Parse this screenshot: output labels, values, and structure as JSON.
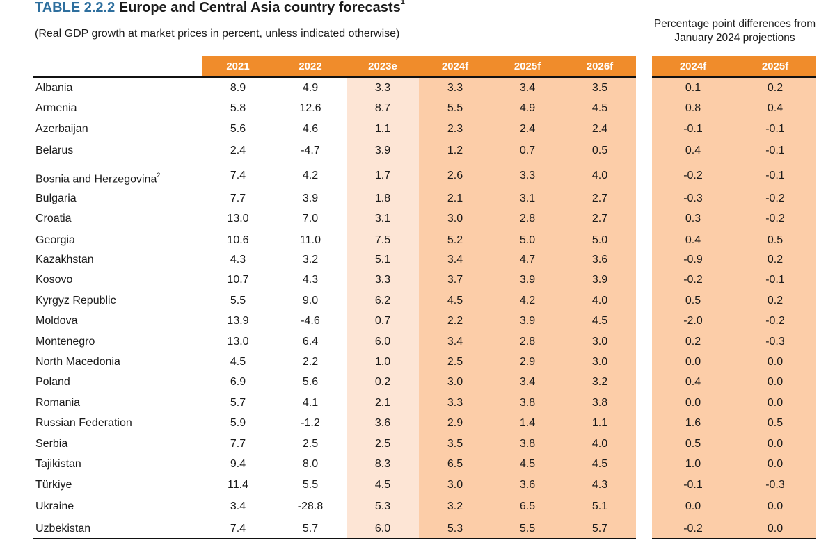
{
  "title": {
    "number": "TABLE 2.2.2",
    "text": "Europe and Central Asia country forecasts",
    "footnote": "1"
  },
  "subtitle": "(Real GDP growth at market prices in percent, unless indicated otherwise)",
  "pp_note": "Percentage point differences from January 2024 projections",
  "colors": {
    "header": "#f08c2b",
    "forecast_fill": "#fccda8",
    "estimate_fill": "#fde5d5",
    "title_accent": "#2e6f9e"
  },
  "columns": [
    "2021",
    "2022",
    "2023e",
    "2024f",
    "2025f",
    "2026f"
  ],
  "pp_columns": [
    "2024f",
    "2025f"
  ],
  "rows": [
    {
      "country": "Albania",
      "note": "",
      "values": [
        "8.9",
        "4.9",
        "3.3",
        "3.3",
        "3.4",
        "3.5"
      ],
      "pp": [
        "0.1",
        "0.2"
      ]
    },
    {
      "country": "Armenia",
      "note": "",
      "values": [
        "5.8",
        "12.6",
        "8.7",
        "5.5",
        "4.9",
        "4.5"
      ],
      "pp": [
        "0.8",
        "0.4"
      ]
    },
    {
      "country": "Azerbaijan",
      "note": "",
      "values": [
        "5.6",
        "4.6",
        "1.1",
        "2.3",
        "2.4",
        "2.4"
      ],
      "pp": [
        "-0.1",
        "-0.1"
      ]
    },
    {
      "country": "Belarus",
      "note": "",
      "values": [
        "2.4",
        "-4.7",
        "3.9",
        "1.2",
        "0.7",
        "0.5"
      ],
      "pp": [
        "0.4",
        "-0.1"
      ]
    },
    {
      "country": "Bosnia and Herzegovina",
      "note": "2",
      "values": [
        "7.4",
        "4.2",
        "1.7",
        "2.6",
        "3.3",
        "4.0"
      ],
      "pp": [
        "-0.2",
        "-0.1"
      ]
    },
    {
      "country": "Bulgaria",
      "note": "",
      "values": [
        "7.7",
        "3.9",
        "1.8",
        "2.1",
        "3.1",
        "2.7"
      ],
      "pp": [
        "-0.3",
        "-0.2"
      ]
    },
    {
      "country": "Croatia",
      "note": "",
      "values": [
        "13.0",
        "7.0",
        "3.1",
        "3.0",
        "2.8",
        "2.7"
      ],
      "pp": [
        "0.3",
        "-0.2"
      ]
    },
    {
      "country": "Georgia",
      "note": "",
      "values": [
        "10.6",
        "11.0",
        "7.5",
        "5.2",
        "5.0",
        "5.0"
      ],
      "pp": [
        "0.4",
        "0.5"
      ]
    },
    {
      "country": "Kazakhstan",
      "note": "",
      "values": [
        "4.3",
        "3.2",
        "5.1",
        "3.4",
        "4.7",
        "3.6"
      ],
      "pp": [
        "-0.9",
        "0.2"
      ]
    },
    {
      "country": "Kosovo",
      "note": "",
      "values": [
        "10.7",
        "4.3",
        "3.3",
        "3.7",
        "3.9",
        "3.9"
      ],
      "pp": [
        "-0.2",
        "-0.1"
      ]
    },
    {
      "country": "Kyrgyz Republic",
      "note": "",
      "values": [
        "5.5",
        "9.0",
        "6.2",
        "4.5",
        "4.2",
        "4.0"
      ],
      "pp": [
        "0.5",
        "0.2"
      ]
    },
    {
      "country": "Moldova",
      "note": "",
      "values": [
        "13.9",
        "-4.6",
        "0.7",
        "2.2",
        "3.9",
        "4.5"
      ],
      "pp": [
        "-2.0",
        "-0.2"
      ]
    },
    {
      "country": "Montenegro",
      "note": "",
      "values": [
        "13.0",
        "6.4",
        "6.0",
        "3.4",
        "2.8",
        "3.0"
      ],
      "pp": [
        "0.2",
        "-0.3"
      ]
    },
    {
      "country": "North Macedonia",
      "note": "",
      "values": [
        "4.5",
        "2.2",
        "1.0",
        "2.5",
        "2.9",
        "3.0"
      ],
      "pp": [
        "0.0",
        "0.0"
      ]
    },
    {
      "country": "Poland",
      "note": "",
      "values": [
        "6.9",
        "5.6",
        "0.2",
        "3.0",
        "3.4",
        "3.2"
      ],
      "pp": [
        "0.4",
        "0.0"
      ]
    },
    {
      "country": "Romania",
      "note": "",
      "values": [
        "5.7",
        "4.1",
        "2.1",
        "3.3",
        "3.8",
        "3.8"
      ],
      "pp": [
        "0.0",
        "0.0"
      ]
    },
    {
      "country": "Russian Federation",
      "note": "",
      "values": [
        "5.9",
        "-1.2",
        "3.6",
        "2.9",
        "1.4",
        "1.1"
      ],
      "pp": [
        "1.6",
        "0.5"
      ]
    },
    {
      "country": "Serbia",
      "note": "",
      "values": [
        "7.7",
        "2.5",
        "2.5",
        "3.5",
        "3.8",
        "4.0"
      ],
      "pp": [
        "0.5",
        "0.0"
      ]
    },
    {
      "country": "Tajikistan",
      "note": "",
      "values": [
        "9.4",
        "8.0",
        "8.3",
        "6.5",
        "4.5",
        "4.5"
      ],
      "pp": [
        "1.0",
        "0.0"
      ]
    },
    {
      "country": "Türkiye",
      "note": "",
      "values": [
        "11.4",
        "5.5",
        "4.5",
        "3.0",
        "3.6",
        "4.3"
      ],
      "pp": [
        "-0.1",
        "-0.3"
      ]
    },
    {
      "country": "Ukraine",
      "note": "",
      "values": [
        "3.4",
        "-28.8",
        "5.3",
        "3.2",
        "6.5",
        "5.1"
      ],
      "pp": [
        "0.0",
        "0.0"
      ]
    },
    {
      "country": "Uzbekistan",
      "note": "",
      "values": [
        "7.4",
        "5.7",
        "6.0",
        "5.3",
        "5.5",
        "5.7"
      ],
      "pp": [
        "-0.2",
        "0.0"
      ]
    }
  ]
}
